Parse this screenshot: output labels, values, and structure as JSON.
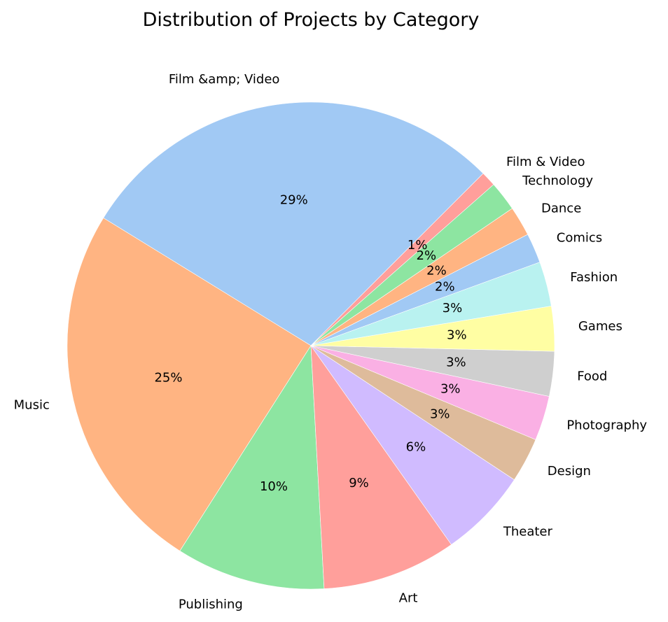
{
  "chart_data": {
    "type": "pie",
    "title": "Distribution of Projects by Category",
    "categories": [
      "Film &amp; Video",
      "Music",
      "Publishing",
      "Art",
      "Theater",
      "Design",
      "Photography",
      "Food",
      "Games",
      "Fashion",
      "Comics",
      "Dance",
      "Technology",
      "Film & Video"
    ],
    "values": [
      29,
      25,
      10,
      9,
      6,
      3,
      3,
      3,
      3,
      3,
      2,
      2,
      2,
      1
    ],
    "value_labels": [
      "29%",
      "25%",
      "10%",
      "9%",
      "6%",
      "3%",
      "3%",
      "3%",
      "3%",
      "3%",
      "2%",
      "2%",
      "2%",
      "1%"
    ],
    "colors": [
      "#a1c9f4",
      "#ffb482",
      "#8de5a1",
      "#ff9f9b",
      "#d0bbff",
      "#debb9b",
      "#fab0e4",
      "#cfcfcf",
      "#fffea3",
      "#b9f2f0",
      "#a1c9f4",
      "#ffb482",
      "#8de5a1",
      "#ff9f9b"
    ],
    "start_angle_deg": 45,
    "direction": "counterclockwise",
    "legend": "none"
  }
}
